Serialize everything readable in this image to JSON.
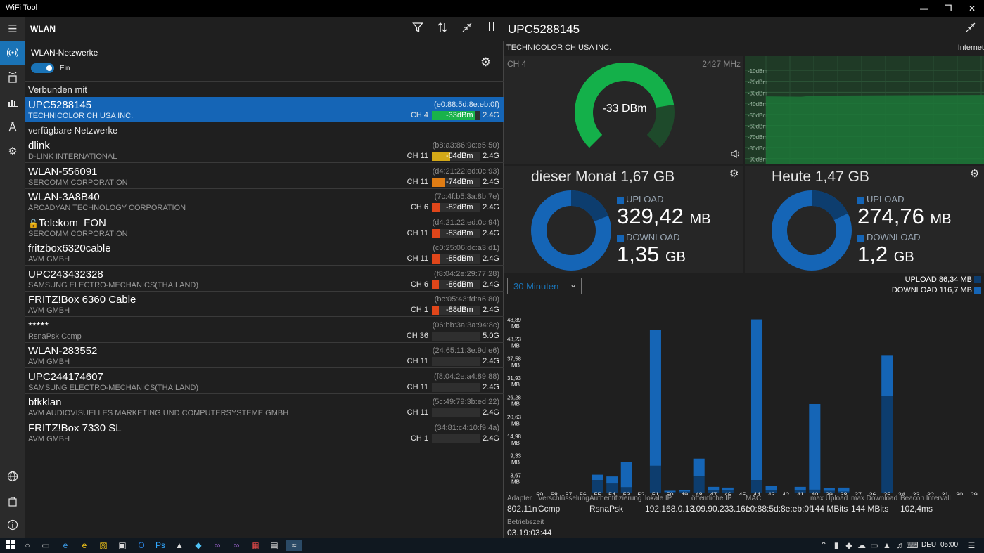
{
  "window": {
    "title": "WiFi Tool"
  },
  "left": {
    "title": "WLAN",
    "wlan_networks_label": "WLAN-Netzwerke",
    "toggle_label": "Ein",
    "connected_label": "Verbunden mit",
    "available_label": "verfügbare Netzwerke",
    "connected": {
      "ssid": "UPC5288145",
      "vendor": "TECHNICOLOR CH USA INC.",
      "mac": "(e0:88:5d:8e:eb:0f)",
      "channel": "CH 4",
      "dbm": "-33dBm",
      "band": "2.4G",
      "signal": 0.9,
      "color": "#19b24b"
    },
    "networks": [
      {
        "ssid": "dlink",
        "vendor": "D-LINK INTERNATIONAL",
        "mac": "(b8:a3:86:9c:e5:50)",
        "channel": "CH 11",
        "dbm": "-64dBm",
        "band": "2.4G",
        "signal": 0.38,
        "color": "#d4a917",
        "locked": false
      },
      {
        "ssid": "WLAN-556091",
        "vendor": "SERCOMM CORPORATION",
        "mac": "(d4:21:22:ed:0c:93)",
        "channel": "CH 11",
        "dbm": "-74dBm",
        "band": "2.4G",
        "signal": 0.28,
        "color": "#e07d14",
        "locked": false
      },
      {
        "ssid": "WLAN-3A8B40",
        "vendor": "ARCADYAN TECHNOLOGY CORPORATION",
        "mac": "(7c:4f:b5:3a:8b:7e)",
        "channel": "CH 6",
        "dbm": "-82dBm",
        "band": "2.4G",
        "signal": 0.18,
        "color": "#e0461a",
        "locked": false
      },
      {
        "ssid": "Telekom_FON",
        "vendor": "SERCOMM CORPORATION",
        "mac": "(d4:21:22:ed:0c:94)",
        "channel": "CH 11",
        "dbm": "-83dBm",
        "band": "2.4G",
        "signal": 0.17,
        "color": "#e0461a",
        "locked": true
      },
      {
        "ssid": "fritzbox6320cable",
        "vendor": "AVM GMBH",
        "mac": "(c0:25:06:dc:a3:d1)",
        "channel": "CH 11",
        "dbm": "-85dBm",
        "band": "2.4G",
        "signal": 0.16,
        "color": "#e0461a",
        "locked": false
      },
      {
        "ssid": "UPC243432328",
        "vendor": "SAMSUNG ELECTRO-MECHANICS(THAILAND)",
        "mac": "(f8:04:2e:29:77:28)",
        "channel": "CH 6",
        "dbm": "-86dBm",
        "band": "2.4G",
        "signal": 0.15,
        "color": "#e0461a",
        "locked": false
      },
      {
        "ssid": "FRITZ!Box 6360 Cable",
        "vendor": "AVM GMBH",
        "mac": "(bc:05:43:fd:a6:80)",
        "channel": "CH 1",
        "dbm": "-88dBm",
        "band": "2.4G",
        "signal": 0.14,
        "color": "#e0461a",
        "locked": false
      },
      {
        "ssid": "*****",
        "vendor": "RsnaPsk Ccmp",
        "mac": "(06:bb:3a:3a:94:8c)",
        "channel": "CH 36",
        "dbm": "",
        "band": "5.0G",
        "signal": 0,
        "color": "#2f2f2f",
        "locked": false
      },
      {
        "ssid": "WLAN-283552",
        "vendor": "AVM GMBH",
        "mac": "(24:65:11:3e:9d:e6)",
        "channel": "CH 11",
        "dbm": "",
        "band": "2.4G",
        "signal": 0,
        "color": "#2f2f2f",
        "locked": false
      },
      {
        "ssid": "UPC244174607",
        "vendor": "SAMSUNG ELECTRO-MECHANICS(THAILAND)",
        "mac": "(f8:04:2e:a4:89:88)",
        "channel": "CH 11",
        "dbm": "",
        "band": "2.4G",
        "signal": 0,
        "color": "#2f2f2f",
        "locked": false
      },
      {
        "ssid": "bfkklan",
        "vendor": "AVM AUDIOVISUELLES MARKETING UND COMPUTERSYSTEME GMBH",
        "mac": "(5c:49:79:3b:ed:22)",
        "channel": "CH 11",
        "dbm": "",
        "band": "2.4G",
        "signal": 0,
        "color": "#2f2f2f",
        "locked": false
      },
      {
        "ssid": "FRITZ!Box 7330 SL",
        "vendor": "AVM GMBH",
        "mac": "(34:81:c4:10:f9:4a)",
        "channel": "CH 1",
        "dbm": "",
        "band": "2.4G",
        "signal": 0,
        "color": "#2f2f2f",
        "locked": false
      }
    ]
  },
  "right": {
    "ssid": "UPC5288145",
    "vendor": "TECHNICOLOR CH USA INC.",
    "internet_label": "Internet",
    "channel": "CH 4",
    "frequency": "2427 MHz",
    "gauge_value": "-33 DBm",
    "gauge_fraction": 0.8,
    "signal_axis": [
      "-10dBm",
      "-20dBm",
      "-30dBm",
      "-40dBm",
      "-50dBm",
      "-60dBm",
      "-70dBm",
      "-80dBm",
      "-90dBm"
    ],
    "month": {
      "title": "dieser Monat 1,67 GB",
      "upload_label": "UPLOAD",
      "upload_value": "329,42",
      "upload_unit": "MB",
      "download_label": "DOWNLOAD",
      "download_value": "1,35",
      "download_unit": "GB",
      "upload_fraction": 0.19
    },
    "today": {
      "title": "Heute 1,47 GB",
      "upload_label": "UPLOAD",
      "upload_value": "274,76",
      "upload_unit": "MB",
      "download_label": "DOWNLOAD",
      "download_value": "1,2",
      "download_unit": "GB",
      "upload_fraction": 0.18
    },
    "range_select": "30 Minuten",
    "legend_upload": "UPLOAD 86,34 MB",
    "legend_download": "DOWNLOAD 116,7 MB",
    "info": [
      {
        "k": "Adapter",
        "v": "802.11n"
      },
      {
        "k": "Verschlüsselung",
        "v": "Ccmp"
      },
      {
        "k": "Authentifizierung",
        "v": "RsnaPsk"
      },
      {
        "k": "lokale IP",
        "v": "192.168.0.13"
      },
      {
        "k": "öffentliche IP",
        "v": "109.90.233.161"
      },
      {
        "k": "MAC",
        "v": "e0:88:5d:8e:eb:0f"
      },
      {
        "k": "max Upload",
        "v": "144 MBits"
      },
      {
        "k": "max Download",
        "v": "144 MBits"
      },
      {
        "k": "Beacon Intervall",
        "v": "102,4ms"
      }
    ],
    "uptime_label": "Betriebszeit",
    "uptime_value": "03.19:03:44"
  },
  "chart_data": {
    "type": "bar",
    "categories": [
      "59",
      "58",
      "57",
      "56",
      "55",
      "54",
      "53",
      "52",
      "51",
      "50",
      "49",
      "48",
      "47",
      "46",
      "45",
      "44",
      "43",
      "42",
      "41",
      "40",
      "39",
      "38",
      "37",
      "36",
      "35",
      "34",
      "33",
      "32",
      "31",
      "30",
      "29"
    ],
    "yticks": [
      "48,89 MB",
      "43,23 MB",
      "37,58 MB",
      "31,93 MB",
      "26,28 MB",
      "20,63 MB",
      "14,98 MB",
      "9,33 MB",
      "3,67 MB"
    ],
    "ylim": [
      0,
      49
    ],
    "series": [
      {
        "name": "UPLOAD",
        "values": [
          0,
          0,
          0,
          0,
          3.5,
          2.5,
          1.5,
          0,
          7.5,
          0.2,
          0.3,
          4.5,
          0.6,
          0.6,
          0,
          3.5,
          0.6,
          0,
          0.6,
          0.8,
          0.5,
          0.3,
          0,
          0,
          27,
          0,
          0,
          0,
          0,
          0,
          0
        ]
      },
      {
        "name": "DOWNLOAD",
        "values": [
          0,
          0,
          0,
          0,
          1.5,
          2,
          7,
          0,
          38,
          0.3,
          0.4,
          5,
          1,
          0.8,
          0,
          45,
          1.2,
          0,
          1,
          24,
          0.8,
          1.1,
          0,
          0,
          11.5,
          0,
          0,
          0,
          0,
          0,
          0
        ]
      }
    ]
  },
  "taskbar": {
    "lang": "DEU",
    "time": "05:00"
  }
}
